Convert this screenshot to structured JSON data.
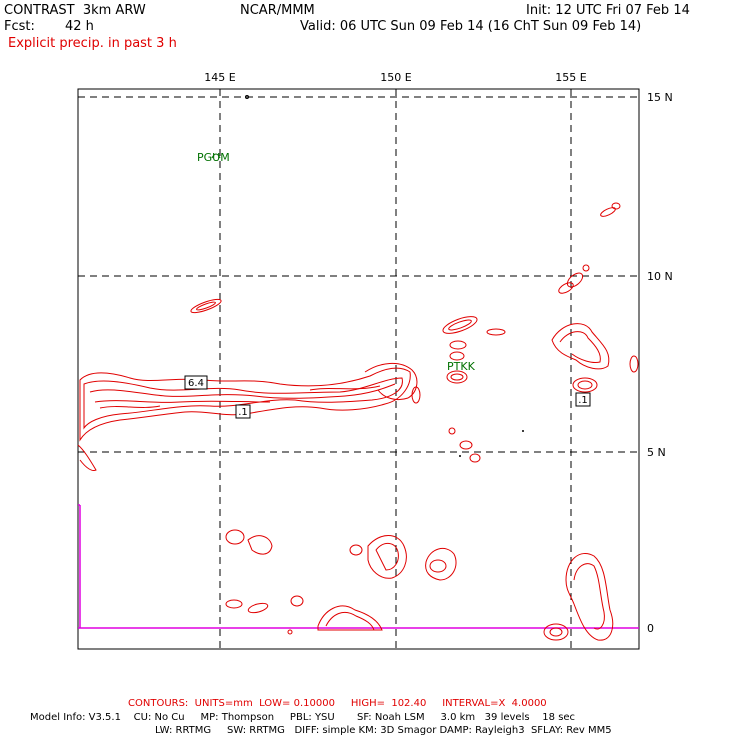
{
  "header": {
    "model": "CONTRAST  3km ARW",
    "org": "NCAR/MMM",
    "init": "Init: 12 UTC Fri 07 Feb 14",
    "fcst_label": "Fcst:",
    "fcst_value": "42 h",
    "valid": "Valid: 06 UTC Sun 09 Feb 14 (16 ChT Sun 09 Feb 14)",
    "field": "Explicit precip. in past 3 h"
  },
  "map": {
    "lon_labels": [
      "145 E",
      "150 E",
      "155 E"
    ],
    "lat_labels": [
      "15 N",
      "10 N",
      "5 N",
      "0"
    ],
    "stations": [
      "PGUM",
      "PTKK"
    ],
    "value_labels": [
      "6.4",
      ".1",
      ".1"
    ],
    "colors": {
      "precip": "#e00000",
      "station": "#007000",
      "magenta": "#e000e0",
      "grid": "#000000"
    }
  },
  "footer": {
    "contours": "CONTOURS:  UNITS=mm  LOW= 0.10000     HIGH=  102.40     INTERVAL=X  4.0000",
    "model_info_1": "Model Info: V3.5.1    CU: No Cu     MP: Thompson     PBL: YSU       SF: Noah LSM     3.0 km   39 levels    18 sec",
    "model_info_2": "LW: RRTMG     SW: RRTMG   DIFF: simple KM: 3D Smagor DAMP: Rayleigh3  SFLAY: Rev MM5"
  }
}
